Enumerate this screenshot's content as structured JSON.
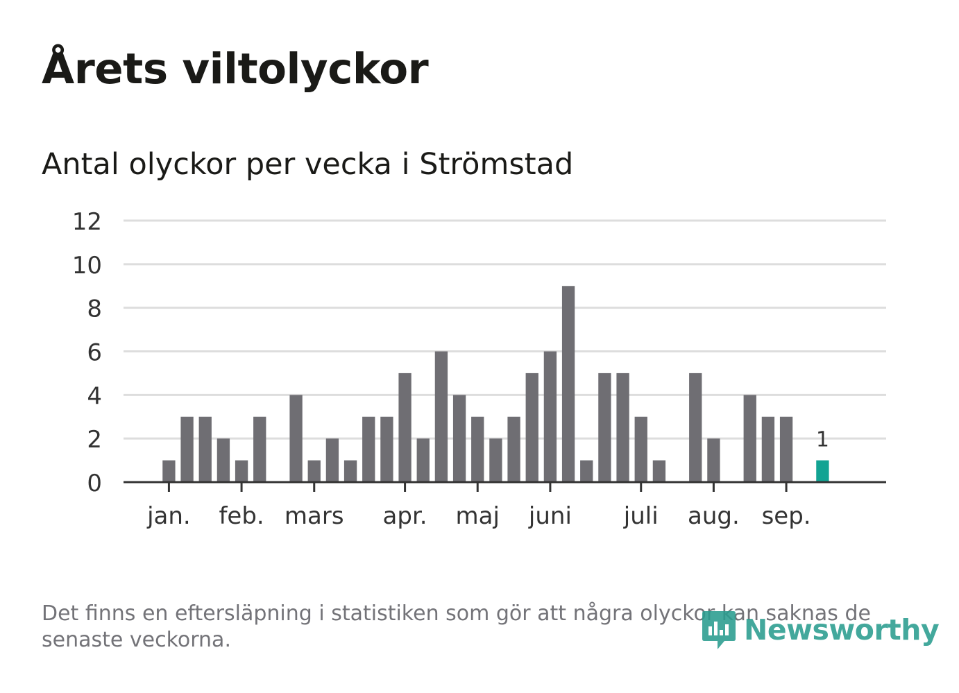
{
  "title": "Årets viltolyckor",
  "subtitle": "Antal olyckor per vecka i Strömstad",
  "footnote": "Det finns en eftersläpning i statistiken som gör att några olyckor kan saknas de senaste veckorna.",
  "logo": {
    "text": "Newsworthy",
    "icon": "newsworthy-logo-icon"
  },
  "colors": {
    "bar": "#6f6e73",
    "highlight": "#12a393",
    "grid": "#dddddd",
    "axis": "#333333",
    "text": "#333333",
    "logo": "#2a9d8f"
  },
  "chart_data": {
    "type": "bar",
    "title": "Antal olyckor per vecka i Strömstad",
    "xlabel": "",
    "ylabel": "",
    "ylim": [
      0,
      12
    ],
    "yticks": [
      0,
      2,
      4,
      6,
      8,
      10,
      12
    ],
    "grid": true,
    "weeks": [
      1,
      2,
      3,
      4,
      5,
      6,
      7,
      8,
      9,
      10,
      11,
      12,
      13,
      14,
      15,
      16,
      17,
      18,
      19,
      20,
      21,
      22,
      23,
      24,
      25,
      26,
      27,
      28,
      29,
      30,
      31,
      32,
      33,
      34,
      35,
      36,
      37,
      38,
      39,
      40,
      41,
      42
    ],
    "values": [
      0,
      0,
      1,
      3,
      3,
      2,
      1,
      3,
      0,
      4,
      1,
      2,
      1,
      3,
      3,
      5,
      2,
      6,
      4,
      3,
      2,
      3,
      5,
      6,
      9,
      1,
      5,
      5,
      3,
      1,
      0,
      5,
      2,
      0,
      4,
      3,
      3,
      0,
      1,
      null,
      null,
      null
    ],
    "highlight_index": 38,
    "highlight_label": "1",
    "month_labels": [
      {
        "label": "jan.",
        "week": 2.5
      },
      {
        "label": "feb.",
        "week": 6.5
      },
      {
        "label": "mars",
        "week": 10.5
      },
      {
        "label": "apr.",
        "week": 15.5
      },
      {
        "label": "maj",
        "week": 19.5
      },
      {
        "label": "juni",
        "week": 23.5
      },
      {
        "label": "juli",
        "week": 28.5
      },
      {
        "label": "aug.",
        "week": 32.5
      },
      {
        "label": "sep.",
        "week": 36.5
      }
    ]
  }
}
